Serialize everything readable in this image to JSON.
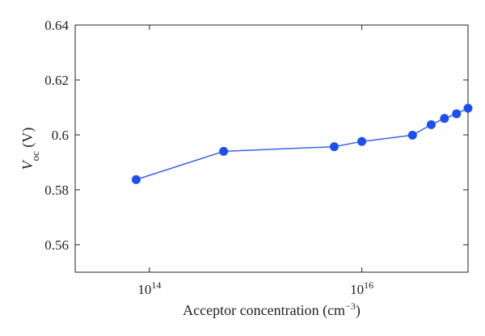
{
  "chart_data": {
    "type": "line",
    "xscale": "log",
    "xlabel_text": "Acceptor concentration (cm",
    "xlabel_sup": "−3",
    "xlabel_close": ")",
    "ylabel_main": "V",
    "ylabel_sub": "oc",
    "ylabel_unit": " (V)",
    "xlim": [
      20000000000000.0,
      1e+17
    ],
    "ylim": [
      0.55,
      0.64
    ],
    "xticks": [
      {
        "base": "10",
        "exp": "14",
        "value": 100000000000000.0
      },
      {
        "base": "10",
        "exp": "16",
        "value": 1e+16
      }
    ],
    "yticks": [
      {
        "label": "0.64",
        "value": 0.64
      },
      {
        "label": "0.62",
        "value": 0.62
      },
      {
        "label": "0.6",
        "value": 0.6
      },
      {
        "label": "0.58",
        "value": 0.58
      },
      {
        "label": "0.56",
        "value": 0.56
      }
    ],
    "grid": false,
    "series": [
      {
        "color": "#1f4ef0",
        "line_color": "#3b62e8",
        "points": [
          {
            "x": 75000000000000.0,
            "y": 0.5837
          },
          {
            "x": 500000000000000.0,
            "y": 0.594
          },
          {
            "x": 5500000000000000.0,
            "y": 0.5957
          },
          {
            "x": 1e+16,
            "y": 0.5976
          },
          {
            "x": 3e+16,
            "y": 0.5999
          },
          {
            "x": 4.5e+16,
            "y": 0.6037
          },
          {
            "x": 6e+16,
            "y": 0.606
          },
          {
            "x": 7.8e+16,
            "y": 0.6077
          },
          {
            "x": 1e+17,
            "y": 0.6097
          }
        ]
      }
    ]
  }
}
